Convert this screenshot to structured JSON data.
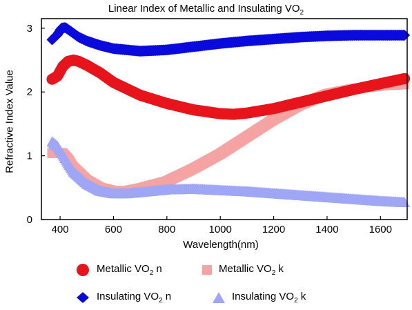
{
  "chart_data": {
    "type": "scatter",
    "title": "Linear Index of Metallic and Insulating VO2",
    "title_parts": [
      "Linear Index of Metallic and Insulating VO",
      "2"
    ],
    "xlabel": "Wavelength(nm)",
    "ylabel": "Refractive Index Value",
    "xlim": [
      330,
      1700
    ],
    "ylim": [
      0,
      3.15
    ],
    "x_ticks": [
      400,
      600,
      800,
      1000,
      1200,
      1400,
      1600
    ],
    "y_ticks": [
      0,
      1,
      2,
      3
    ],
    "grid": false,
    "legend_position": "bottom",
    "series": [
      {
        "name": "Metallic VO2 n",
        "name_parts": [
          "Metallic VO",
          "2",
          " n"
        ],
        "marker": "circle",
        "color": "#e8141c",
        "x": [
          370,
          390,
          410,
          430,
          450,
          470,
          500,
          550,
          600,
          700,
          800,
          900,
          1000,
          1050,
          1100,
          1200,
          1300,
          1400,
          1500,
          1600,
          1690
        ],
        "y": [
          2.2,
          2.25,
          2.4,
          2.48,
          2.5,
          2.48,
          2.42,
          2.3,
          2.15,
          1.95,
          1.82,
          1.72,
          1.66,
          1.65,
          1.67,
          1.74,
          1.84,
          1.94,
          2.04,
          2.13,
          2.21
        ]
      },
      {
        "name": "Metallic VO2 k",
        "name_parts": [
          "Metallic VO",
          "2",
          " k"
        ],
        "marker": "square",
        "color": "#f5a3a3",
        "x": [
          370,
          390,
          410,
          430,
          450,
          500,
          550,
          600,
          650,
          700,
          800,
          900,
          1000,
          1100,
          1200,
          1300,
          1400,
          1500,
          1600,
          1690
        ],
        "y": [
          1.04,
          1.05,
          1.04,
          0.95,
          0.82,
          0.62,
          0.5,
          0.45,
          0.45,
          0.49,
          0.6,
          0.8,
          1.03,
          1.3,
          1.57,
          1.8,
          1.97,
          2.05,
          2.1,
          2.12
        ]
      },
      {
        "name": "Insulating VO2 n",
        "name_parts": [
          "Insulating VO",
          "2",
          " n"
        ],
        "marker": "diamond",
        "color": "#0a0adc",
        "x": [
          370,
          390,
          405,
          420,
          440,
          470,
          500,
          550,
          600,
          700,
          800,
          900,
          1000,
          1100,
          1200,
          1300,
          1400,
          1500,
          1600,
          1690
        ],
        "y": [
          2.82,
          2.9,
          3.0,
          3.01,
          2.95,
          2.86,
          2.8,
          2.73,
          2.68,
          2.64,
          2.66,
          2.71,
          2.76,
          2.8,
          2.83,
          2.86,
          2.88,
          2.89,
          2.89,
          2.89
        ]
      },
      {
        "name": "Insulating VO2 k",
        "name_parts": [
          "Insulating VO",
          "2",
          " k"
        ],
        "marker": "triangle",
        "color": "#9ea6f5",
        "x": [
          370,
          390,
          410,
          430,
          450,
          500,
          550,
          600,
          650,
          700,
          800,
          900,
          1000,
          1100,
          1200,
          1300,
          1400,
          1500,
          1600,
          1690
        ],
        "y": [
          1.22,
          1.15,
          1.02,
          0.88,
          0.75,
          0.56,
          0.45,
          0.41,
          0.41,
          0.43,
          0.47,
          0.48,
          0.46,
          0.44,
          0.41,
          0.38,
          0.35,
          0.32,
          0.29,
          0.27
        ]
      }
    ]
  }
}
